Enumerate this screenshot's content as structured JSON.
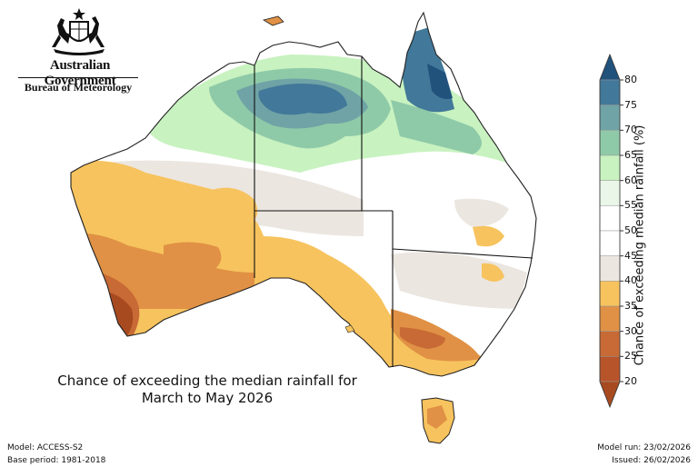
{
  "logo": {
    "line1": "Australian Government",
    "line2": "Bureau of Meteorology",
    "emblem_icon": "coat-of-arms-icon"
  },
  "map": {
    "title_line1": "Chance of exceeding the median rainfall for",
    "title_line2": "March to May 2026",
    "land_base_color": "#ffffff",
    "coast_color": "#222222"
  },
  "legend": {
    "label": "Chance of exceeding median rainfall (%)",
    "ticks": [
      "20",
      "25",
      "30",
      "35",
      "40",
      "45",
      "50",
      "55",
      "60",
      "65",
      "70",
      "75",
      "80"
    ],
    "bands": [
      {
        "range": "<20",
        "color": "#a84a20"
      },
      {
        "range": "20-25",
        "color": "#b8542a"
      },
      {
        "range": "25-30",
        "color": "#c86a35"
      },
      {
        "range": "30-35",
        "color": "#e09145"
      },
      {
        "range": "35-40",
        "color": "#f7c35e"
      },
      {
        "range": "40-45",
        "color": "#ebe6e0"
      },
      {
        "range": "45-50",
        "color": "#ffffff"
      },
      {
        "range": "50-55",
        "color": "#ffffff"
      },
      {
        "range": "55-60",
        "color": "#e9f6e8"
      },
      {
        "range": "60-65",
        "color": "#c8f2c0"
      },
      {
        "range": "65-70",
        "color": "#8fcaa8"
      },
      {
        "range": "70-75",
        "color": "#6fa3a6"
      },
      {
        "range": "75-80",
        "color": "#427899"
      },
      {
        "range": ">80",
        "color": "#21527c"
      }
    ]
  },
  "footer": {
    "model": "Model: ACCESS-S2",
    "base_period": "Base period: 1981-2018",
    "model_run": "Model run: 23/02/2026",
    "issued": "Issued: 26/02/2026"
  }
}
